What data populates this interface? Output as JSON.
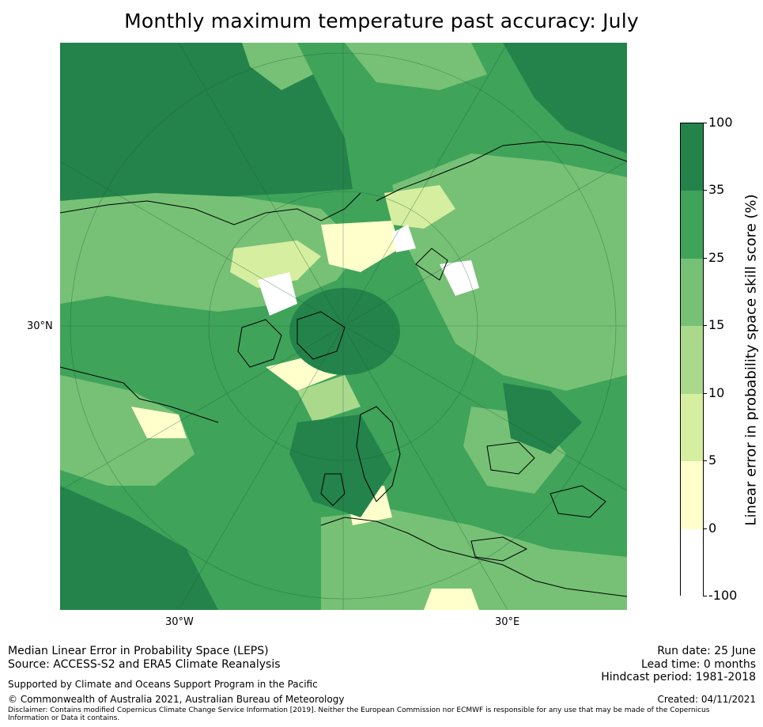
{
  "title": "Monthly maximum temperature past accuracy: July",
  "map": {
    "lat_label": "30°N",
    "lon_labels": [
      "30°W",
      "30°E"
    ]
  },
  "colorbar": {
    "label": "Linear error in probability space skill score (%)",
    "ticks": [
      "100",
      "35",
      "25",
      "15",
      "10",
      "5",
      "0",
      "-100"
    ],
    "colors": [
      "#23834a",
      "#3fa35a",
      "#76c176",
      "#aad98c",
      "#d6ee9f",
      "#ffffcc",
      "#ffffff"
    ]
  },
  "footer": {
    "line1": "Median Linear Error in Probability Space (LEPS)",
    "line2": "Source: ACCESS-S2 and ERA5 Climate Reanalysis",
    "supported": "Supported by Climate and Oceans Support Program in the Pacific",
    "copyright": "© Commonwealth of Australia 2021, Australian Bureau of Meteorology",
    "disclaimer": "Disclaimer: Contains modified Copernicus Climate Change Service Information [2019]. Neither the European Commission nor ECMWF is responsible for any use that may be made of the Copernicus Information or Data it contains.",
    "run_date": "Run date: 25 June",
    "lead_time": "Lead time: 0 months",
    "hindcast": "Hindcast period: 1981-2018",
    "created": "Created: 04/11/2021"
  }
}
